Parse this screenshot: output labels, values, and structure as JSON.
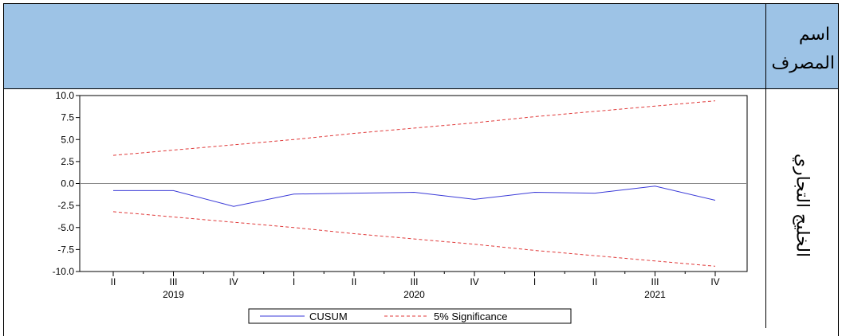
{
  "header": {
    "company_label_line1": "اسم",
    "company_label_line2": "المصرف"
  },
  "row": {
    "company_name": "الخليج التجاري"
  },
  "colors": {
    "header_bg": "#9dc3e6",
    "cusum_line": "#3a3ad8",
    "significance_line": "#e03a3a",
    "zero_line": "#888888"
  },
  "chart_data": {
    "type": "line",
    "title": "",
    "xlabel": "",
    "ylabel": "",
    "ylim": [
      -10.0,
      10.0
    ],
    "y_ticks": [
      "10.0",
      "7.5",
      "5.0",
      "2.5",
      "0.0",
      "-2.5",
      "-5.0",
      "-7.5",
      "-10.0"
    ],
    "y_tick_values": [
      10.0,
      7.5,
      5.0,
      2.5,
      0.0,
      -2.5,
      -5.0,
      -7.5,
      -10.0
    ],
    "categories": [
      "II",
      "III",
      "IV",
      "I",
      "II",
      "III",
      "IV",
      "I",
      "II",
      "III",
      "IV"
    ],
    "year_labels": [
      {
        "label": "2019",
        "category_index": 1
      },
      {
        "label": "2020",
        "category_index": 5
      },
      {
        "label": "2021",
        "category_index": 9
      }
    ],
    "series": [
      {
        "name": "CUSUM",
        "style": "solid",
        "values": [
          -0.8,
          -0.8,
          -2.6,
          -1.2,
          -1.1,
          -1.0,
          -1.8,
          -1.0,
          -1.1,
          -0.3,
          -1.9
        ]
      },
      {
        "name": "5% Significance",
        "style": "dashed",
        "values": [
          3.2,
          3.8,
          4.4,
          5.0,
          5.7,
          6.3,
          6.9,
          7.6,
          8.2,
          8.8,
          9.4
        ]
      },
      {
        "name": "5% Significance",
        "style": "dashed",
        "values": [
          -3.2,
          -3.8,
          -4.4,
          -5.0,
          -5.7,
          -6.3,
          -6.9,
          -7.6,
          -8.2,
          -8.8,
          -9.4
        ]
      }
    ],
    "legend": {
      "position": "bottom-center",
      "entries": [
        "CUSUM",
        "5% Significance"
      ]
    },
    "grid": false
  }
}
